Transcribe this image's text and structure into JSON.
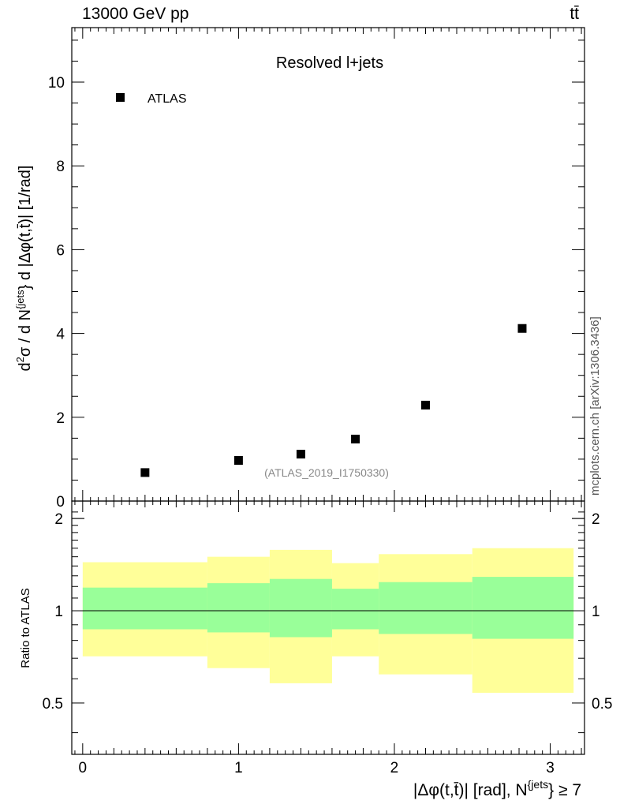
{
  "header": {
    "left": "13000 GeV pp",
    "right": "tt̄"
  },
  "watermark": "mcplots.cern.ch [arXiv:1306.3436]",
  "chart_data": {
    "type": "scatter",
    "main": {
      "title": "Resolved l+jets",
      "ylabel_parts": {
        "pre": "d",
        "sup1": "2",
        "mid": "σ / d N",
        "sup2": "{jets",
        "post": "} d |Δφ(t,t̄)| [1/rad]"
      },
      "xlim": [
        -0.07,
        3.22
      ],
      "ylim": [
        0,
        11.3
      ],
      "yticks": [
        0,
        2,
        4,
        6,
        8,
        10
      ],
      "legend": [
        {
          "name": "ATLAS",
          "marker": "square",
          "color": "#000000"
        }
      ],
      "analysis_label": "(ATLAS_2019_I1750330)",
      "series": [
        {
          "name": "ATLAS",
          "x": [
            0.4,
            1.0,
            1.4,
            1.75,
            2.2,
            2.82
          ],
          "y": [
            0.68,
            0.97,
            1.12,
            1.48,
            2.29,
            4.12
          ]
        }
      ]
    },
    "ratio": {
      "ylabel": "Ratio to ATLAS",
      "ylim": [
        0.34,
        2.28
      ],
      "yticks": [
        0.5,
        1,
        2
      ],
      "ytick_labels": [
        "0.5",
        "1",
        "2"
      ],
      "reference_line": 1,
      "bin_edges": [
        0,
        0.8,
        1.2,
        1.6,
        1.9,
        2.5,
        3.15
      ],
      "inner_band": {
        "color": "#99ff99",
        "lo": [
          0.87,
          0.85,
          0.82,
          0.87,
          0.84,
          0.81
        ],
        "hi": [
          1.19,
          1.23,
          1.27,
          1.18,
          1.24,
          1.29
        ]
      },
      "outer_band": {
        "color": "#ffff99",
        "lo": [
          0.71,
          0.65,
          0.58,
          0.71,
          0.62,
          0.54
        ],
        "hi": [
          1.44,
          1.5,
          1.58,
          1.43,
          1.53,
          1.6
        ]
      }
    },
    "xaxis": {
      "ticks": [
        0,
        1,
        2,
        3
      ],
      "label_parts": {
        "pre": "|Δφ(t,t̄)| [rad], N",
        "sup": "{jets",
        "post": "} ≥ 7"
      }
    }
  }
}
